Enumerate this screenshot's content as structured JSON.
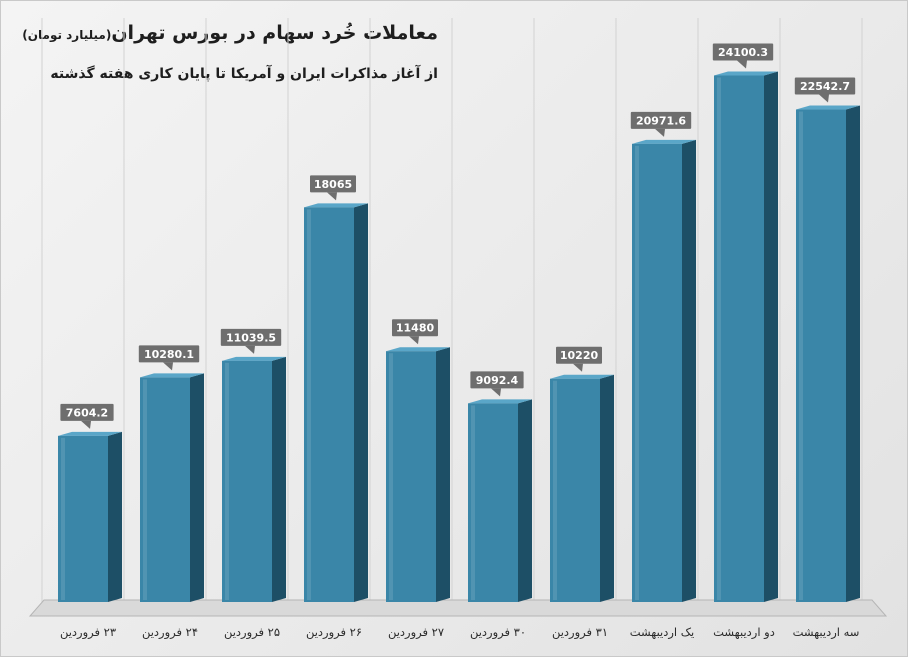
{
  "chart_data": {
    "type": "bar",
    "title": "معاملات خُرد سهام در بورس تهران",
    "title_unit": "(میلیارد تومان)",
    "subtitle": "از آغاز مذاکرات ایران و آمریکا تا پایان کاری هفته گذشته",
    "categories": [
      "۲۳ فروردین",
      "۲۴ فروردین",
      "۲۵ فروردین",
      "۲۶ فروردین",
      "۲۷ فروردین",
      "۳۰ فروردین",
      "۳۱ فروردین",
      "یک اردیبهشت",
      "دو اردیبهشت",
      "سه اردیبهشت"
    ],
    "values": [
      7604.2,
      10280.1,
      11039.5,
      18065,
      11480,
      9092.4,
      10220,
      20971.6,
      24100.3,
      22542.7
    ],
    "value_labels": [
      "7604.2",
      "10280.1",
      "11039.5",
      "18065",
      "11480",
      "9092.4",
      "10220",
      "20971.6",
      "24100.3",
      "22542.7"
    ],
    "xlabel": "",
    "ylabel": "",
    "ylim": [
      0,
      26000
    ],
    "grid": true,
    "legend": "none",
    "style": "3d-column"
  },
  "colors": {
    "bar_front": "#3a86a8",
    "bar_side": "#1d4f66",
    "bar_top": "#5aa6c8",
    "label_bg": "#6e6e6e",
    "label_text": "#ffffff",
    "grid": "#d2d2d2"
  }
}
